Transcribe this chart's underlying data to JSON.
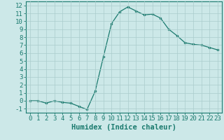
{
  "xlabel": "Humidex (Indice chaleur)",
  "x_values": [
    0,
    1,
    2,
    3,
    4,
    5,
    6,
    7,
    8,
    9,
    10,
    11,
    12,
    13,
    14,
    15,
    16,
    17,
    18,
    19,
    20,
    21,
    22,
    23
  ],
  "y_values": [
    0,
    0,
    -0.3,
    0,
    -0.2,
    -0.3,
    -0.7,
    -1.1,
    1.2,
    5.5,
    9.7,
    11.2,
    11.8,
    11.3,
    10.8,
    10.9,
    10.4,
    9.0,
    8.2,
    7.3,
    7.1,
    7.0,
    6.7,
    6.4
  ],
  "ylim": [
    -1.5,
    12.5
  ],
  "xlim": [
    -0.5,
    23.5
  ],
  "yticks": [
    -1,
    0,
    1,
    2,
    3,
    4,
    5,
    6,
    7,
    8,
    9,
    10,
    11,
    12
  ],
  "xticks": [
    0,
    1,
    2,
    3,
    4,
    5,
    6,
    7,
    8,
    9,
    10,
    11,
    12,
    13,
    14,
    15,
    16,
    17,
    18,
    19,
    20,
    21,
    22,
    23
  ],
  "line_color": "#1a7a6e",
  "marker": "o",
  "marker_size": 2.0,
  "bg_color": "#cce8e8",
  "grid_color": "#aacccc",
  "xlabel_fontsize": 7.5,
  "tick_fontsize": 6.5
}
